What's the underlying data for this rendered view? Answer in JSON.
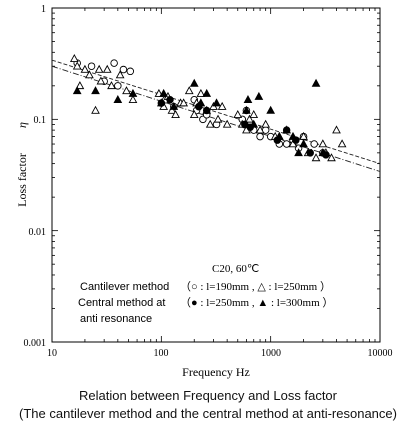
{
  "chart_data": {
    "type": "scatter",
    "xlabel": "Frequency  Hz",
    "ylabel": "Loss factor",
    "ylabel_symbol": "η",
    "xscale": "log",
    "yscale": "log",
    "xlim": [
      10,
      10000
    ],
    "ylim": [
      0.001,
      1
    ],
    "x_ticks": [
      "10",
      "100",
      "1000",
      "10000"
    ],
    "y_ticks": [
      "1",
      "0.1",
      "0.01",
      "0.001"
    ],
    "legend": {
      "condition": "C20, 60℃",
      "method1": "Cantilever method",
      "method1_detail": "（○ : l=190mm , △ : l=250mm ）",
      "method2_line1": "Central method at",
      "method2_line2": "anti resonance",
      "method2_detail": "（● : l=250mm , ▲ : l=300mm ）"
    },
    "series": [
      {
        "name": "l=190mm",
        "marker": "open-circle",
        "x": [
          17,
          23,
          30,
          37,
          40,
          45,
          52,
          110,
          130,
          200,
          210,
          220,
          240,
          260,
          320,
          550,
          600,
          650,
          700,
          800,
          900,
          1000,
          1200,
          1400,
          1600,
          1800,
          2000,
          2500,
          3000
        ],
        "y": [
          0.32,
          0.3,
          0.22,
          0.32,
          0.2,
          0.28,
          0.27,
          0.15,
          0.13,
          0.15,
          0.12,
          0.13,
          0.1,
          0.11,
          0.09,
          0.1,
          0.12,
          0.09,
          0.08,
          0.07,
          0.08,
          0.07,
          0.06,
          0.06,
          0.065,
          0.055,
          0.07,
          0.06,
          0.05
        ]
      },
      {
        "name": "l=250mm",
        "marker": "open-triangle",
        "x": [
          16,
          17,
          18,
          20,
          22,
          25,
          27,
          28,
          32,
          35,
          42,
          48,
          55,
          95,
          100,
          105,
          115,
          125,
          135,
          150,
          160,
          180,
          200,
          210,
          230,
          260,
          280,
          300,
          330,
          360,
          400,
          500,
          550,
          600,
          640,
          700,
          800,
          900,
          1100,
          1200,
          1400,
          1600,
          2000,
          2200,
          2600,
          3000,
          3200,
          3600,
          4000,
          4500
        ],
        "y": [
          0.35,
          0.3,
          0.2,
          0.28,
          0.25,
          0.12,
          0.28,
          0.22,
          0.28,
          0.2,
          0.25,
          0.18,
          0.15,
          0.17,
          0.14,
          0.13,
          0.16,
          0.12,
          0.11,
          0.14,
          0.14,
          0.18,
          0.11,
          0.14,
          0.17,
          0.12,
          0.09,
          0.13,
          0.1,
          0.13,
          0.09,
          0.11,
          0.09,
          0.08,
          0.1,
          0.11,
          0.08,
          0.09,
          0.07,
          0.07,
          0.08,
          0.06,
          0.07,
          0.05,
          0.045,
          0.06,
          0.05,
          0.045,
          0.08,
          0.06
        ]
      },
      {
        "name": "l=250mm",
        "marker": "filled-circle",
        "x": [
          100,
          120,
          220,
          260,
          580,
          650,
          1150,
          1400,
          1700,
          2300,
          3200
        ],
        "y": [
          0.14,
          0.15,
          0.13,
          0.12,
          0.09,
          0.085,
          0.065,
          0.08,
          0.065,
          0.05,
          0.048
        ]
      },
      {
        "name": "l=300mm",
        "marker": "filled-triangle",
        "x": [
          17,
          25,
          40,
          55,
          105,
          130,
          200,
          230,
          260,
          320,
          600,
          620,
          700,
          780,
          1000,
          1200,
          1600,
          1800,
          2000,
          2600,
          3000
        ],
        "y": [
          0.18,
          0.18,
          0.15,
          0.17,
          0.17,
          0.13,
          0.21,
          0.14,
          0.17,
          0.14,
          0.12,
          0.15,
          0.09,
          0.16,
          0.12,
          0.07,
          0.07,
          0.05,
          0.06,
          0.21,
          0.05
        ]
      }
    ],
    "fit_lines": [
      {
        "x": [
          10,
          10000
        ],
        "y": [
          0.34,
          0.04
        ]
      },
      {
        "x": [
          10,
          10000
        ],
        "y": [
          0.3,
          0.034
        ]
      }
    ]
  },
  "caption": {
    "line1": "Relation between Frequency and Loss factor",
    "line2": "(The cantilever method and the central method at anti-resonance)"
  }
}
